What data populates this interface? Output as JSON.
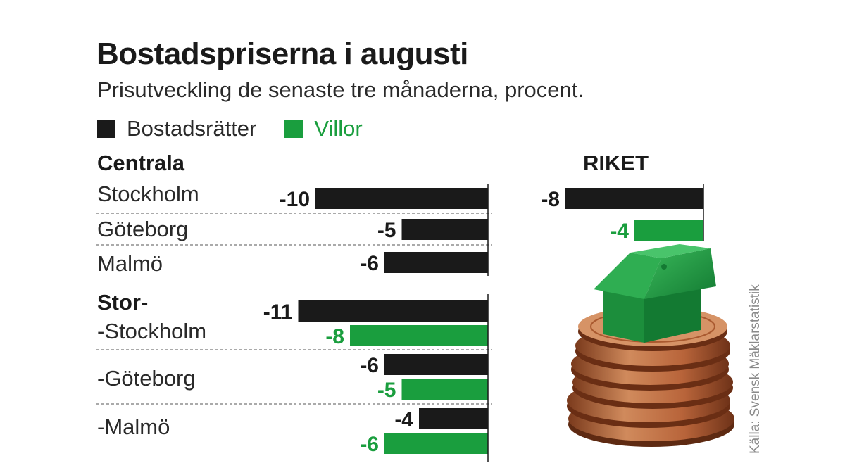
{
  "title": "Bostadspriserna i augusti",
  "subtitle": "Prisutveckling de senaste tre månaderna, procent.",
  "legend": [
    {
      "label": "Bostadsrätter",
      "color": "#1a1a1a"
    },
    {
      "label": "Villor",
      "color": "#1a9e3e"
    }
  ],
  "groups": {
    "centrala": "Centrala",
    "stor": "Stor-",
    "riket": "RIKET"
  },
  "row_labels": {
    "stockholm": "Stockholm",
    "goteborg": "Göteborg",
    "malmo": "Malmö",
    "stor_stockholm": "-Stockholm",
    "stor_goteborg": "-Göteborg",
    "stor_malmo": "-Malmö"
  },
  "source": "Källa: Svensk Mäklarstatistik",
  "colors": {
    "bostadsratter": "#1a1a1a",
    "villor": "#1a9e3e"
  },
  "chart_data": {
    "type": "bar",
    "orientation": "horizontal",
    "title": "Bostadspriserna i augusti",
    "subtitle": "Prisutveckling de senaste tre månaderna, procent.",
    "series": [
      {
        "name": "Bostadsrätter",
        "color": "#1a1a1a"
      },
      {
        "name": "Villor",
        "color": "#1a9e3e"
      }
    ],
    "data": [
      {
        "group": "Centrala",
        "category": "Stockholm",
        "Bostadsrätter": -10
      },
      {
        "group": "Centrala",
        "category": "Göteborg",
        "Bostadsrätter": -5
      },
      {
        "group": "Centrala",
        "category": "Malmö",
        "Bostadsrätter": -6
      },
      {
        "group": "Stor-",
        "category": "-Stockholm",
        "Bostadsrätter": -11,
        "Villor": -8
      },
      {
        "group": "Stor-",
        "category": "-Göteborg",
        "Bostadsrätter": -6,
        "Villor": -5
      },
      {
        "group": "Stor-",
        "category": "-Malmö",
        "Bostadsrätter": -4,
        "Villor": -6
      },
      {
        "group": "RIKET",
        "category": "RIKET",
        "Bostadsrätter": -8,
        "Villor": -4
      }
    ],
    "grid": false
  }
}
